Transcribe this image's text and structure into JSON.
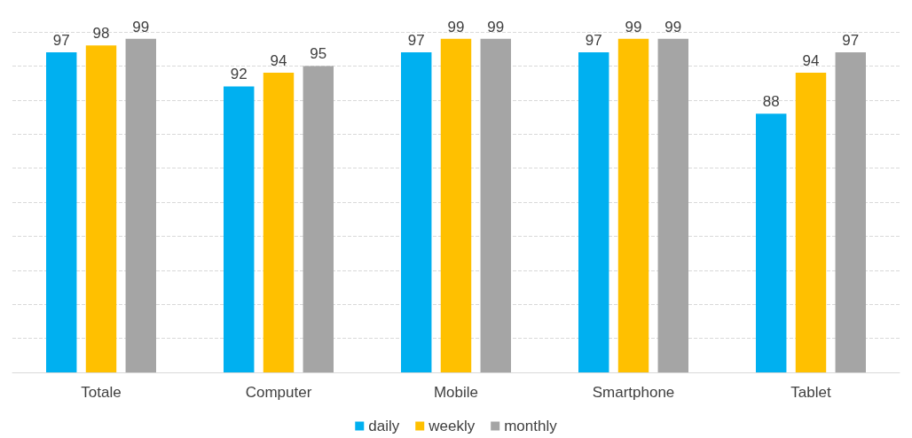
{
  "chart_data": {
    "type": "bar",
    "categories": [
      "Totale",
      "Computer",
      "Mobile",
      "Smartphone",
      "Tablet"
    ],
    "series": [
      {
        "name": "daily",
        "color": "#00b0f0",
        "values": [
          97,
          92,
          97,
          97,
          88
        ]
      },
      {
        "name": "weekly",
        "color": "#ffc000",
        "values": [
          98,
          94,
          99,
          99,
          94
        ]
      },
      {
        "name": "monthly",
        "color": "#a5a5a5",
        "values": [
          99,
          95,
          99,
          99,
          97
        ]
      }
    ],
    "ylim": [
      50,
      100
    ],
    "yticks": [
      {
        "value": 50,
        "label": null
      },
      {
        "value": 55,
        "label": null
      },
      {
        "value": 60,
        "label": null
      },
      {
        "value": 65,
        "label": null
      },
      {
        "value": 70,
        "label": null
      },
      {
        "value": 75,
        "label": null
      },
      {
        "value": 80,
        "label": null
      },
      {
        "value": 85,
        "label": null
      },
      {
        "value": 90,
        "label": null
      },
      {
        "value": 95,
        "label": null
      },
      {
        "value": 100,
        "label": null
      }
    ],
    "tick_labels": "x",
    "grid": "y",
    "legend": "bottom",
    "data_labels": true
  }
}
